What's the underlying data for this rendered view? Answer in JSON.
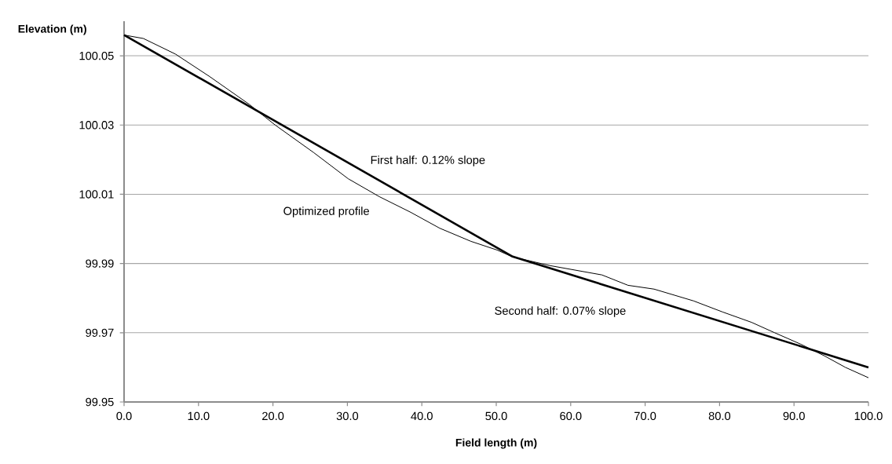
{
  "chart_data": {
    "type": "line",
    "xlabel": "Field length (m)",
    "ylabel": "Elevation (m)",
    "series": [
      {
        "color": "#000000",
        "x": [
          0,
          52.2,
          100
        ],
        "values": [
          100.056,
          99.992,
          99.96
        ]
      },
      {
        "color": "#000000",
        "x": [
          0,
          2.6,
          6.9,
          11.5,
          16.8,
          20.3,
          25.5,
          30.1,
          34.3,
          38.5,
          42.4,
          46.6,
          50.1,
          52.2,
          57.2,
          64.2,
          67.7,
          71.2,
          76.5,
          80.4,
          84.3,
          87.4,
          90.9,
          94.1,
          96.9,
          100
        ],
        "values": [
          100.056,
          100.055,
          100.0505,
          100.044,
          100.036,
          100.03,
          100.022,
          100.0145,
          100.0093,
          100.0048,
          100.0002,
          99.9964,
          99.9939,
          99.9919,
          99.9894,
          99.9867,
          99.9837,
          99.9826,
          99.9792,
          99.976,
          99.973,
          99.97,
          99.9667,
          99.9633,
          99.96,
          99.957
        ]
      }
    ],
    "annotations": [
      "First half: 0.12% slope",
      "Optimized profile",
      "Second half: 0.07% slope"
    ],
    "xlim": [
      0,
      100
    ],
    "ylim": [
      99.95,
      100.06
    ],
    "xticks": [
      {
        "value": 0,
        "label": "0.0"
      },
      {
        "value": 10,
        "label": "10.0"
      },
      {
        "value": 20,
        "label": "20.0"
      },
      {
        "value": 30,
        "label": "30.0"
      },
      {
        "value": 40,
        "label": "40.0"
      },
      {
        "value": 50,
        "label": "50.0"
      },
      {
        "value": 60,
        "label": "60.0"
      },
      {
        "value": 70,
        "label": "70.0"
      },
      {
        "value": 80,
        "label": "80.0"
      },
      {
        "value": 90,
        "label": "90.0"
      },
      {
        "value": 100,
        "label": "100.0"
      }
    ],
    "yticks": [
      99.95,
      99.97,
      99.99,
      100.01,
      100.03,
      100.05
    ],
    "grid": "y",
    "marker": "none",
    "line_style": "solid"
  }
}
